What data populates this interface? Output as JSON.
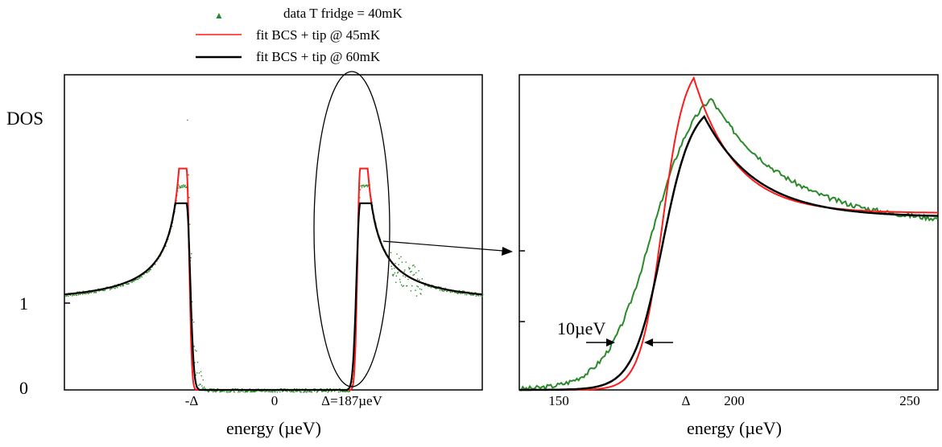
{
  "colors": {
    "data": "#2a8a2a",
    "fit45": "#ff1a1a",
    "fit60": "#000000"
  },
  "legend": {
    "items": [
      {
        "key": "data",
        "label": "data  T fridge = 40mK"
      },
      {
        "key": "fit45",
        "label": "fit BCS + tip @ 45mK"
      },
      {
        "key": "fit60",
        "label": "fit BCS + tip @ 60mK"
      }
    ]
  },
  "chart_data": [
    {
      "type": "line",
      "panel": "left",
      "ylabel": "DOS",
      "xlabel": "energy (µeV)",
      "xlim": [
        -450,
        450
      ],
      "ylim": [
        0,
        2.9
      ],
      "xticks": [
        {
          "value": -187,
          "label": "-Δ"
        },
        {
          "value": 0,
          "label": "0"
        },
        {
          "value": 187,
          "label": "Δ=187µeV"
        }
      ],
      "yticks": [
        {
          "value": 0,
          "label": "0"
        },
        {
          "value": 1,
          "label": "1"
        }
      ],
      "gap_delta": 187,
      "series": [
        {
          "key": "data",
          "name": "data  T fridge = 40mK",
          "peak": 2.35,
          "width": 10
        },
        {
          "key": "fit45",
          "name": "fit BCS + tip @ 45mK",
          "peak": 2.55,
          "width": 8
        },
        {
          "key": "fit60",
          "name": "fit BCS + tip @ 60mK",
          "peak": 2.15,
          "width": 11
        }
      ],
      "annotation": "ellipse highlighting the +Δ coherence peak"
    },
    {
      "type": "line",
      "panel": "right (zoom)",
      "xlabel": "energy (µeV)",
      "xlim": [
        140,
        260
      ],
      "xticks": [
        {
          "value": 150,
          "label": "150"
        },
        {
          "value": 187,
          "label": "Δ"
        },
        {
          "value": 200,
          "label": "200"
        },
        {
          "value": 250,
          "label": "250"
        }
      ],
      "series": [
        {
          "key": "data",
          "name": "data  T fridge = 40mK",
          "peak_energy": 195
        },
        {
          "key": "fit45",
          "name": "fit BCS + tip @ 45mK",
          "peak_energy": 190
        },
        {
          "key": "fit60",
          "name": "fit BCS + tip @ 60mK",
          "peak_energy": 193
        }
      ],
      "annotation": {
        "text": "10µeV",
        "description": "width marker between arrows"
      }
    }
  ]
}
